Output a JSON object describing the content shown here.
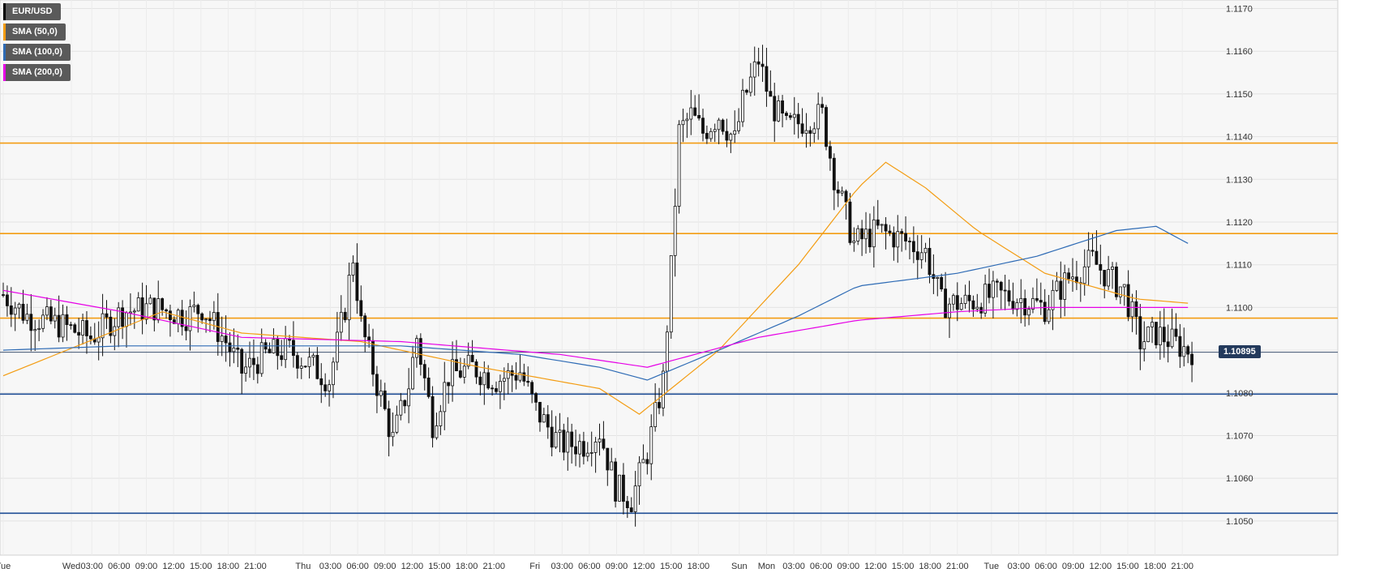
{
  "chart_data": {
    "type": "candlestick",
    "symbol": "EUR/USD",
    "last_price": "1.10895",
    "ylim": [
      1.1042,
      1.1172
    ],
    "y_ticks": [
      "1.1050",
      "1.1060",
      "1.1070",
      "1.1080",
      "1.1090",
      "1.1100",
      "1.1110",
      "1.1120",
      "1.1130",
      "1.1140",
      "1.1150",
      "1.1160",
      "1.1170"
    ],
    "x_ticks": [
      "Tue",
      "Wed",
      "03:00",
      "06:00",
      "09:00",
      "12:00",
      "15:00",
      "18:00",
      "21:00",
      "Thu",
      "03:00",
      "06:00",
      "09:00",
      "12:00",
      "15:00",
      "18:00",
      "21:00",
      "Fri",
      "03:00",
      "06:00",
      "09:00",
      "12:00",
      "15:00",
      "18:00",
      "Sun",
      "Mon",
      "03:00",
      "06:00",
      "09:00",
      "12:00",
      "15:00",
      "18:00",
      "21:00",
      "Tue",
      "03:00",
      "06:00",
      "09:00",
      "12:00",
      "15:00",
      "18:00",
      "21:00"
    ],
    "grid": true,
    "legend": [
      {
        "label": "EUR/USD",
        "color": "#000000"
      },
      {
        "label": "SMA (50,0)",
        "color": "#f39c12"
      },
      {
        "label": "SMA (100,0)",
        "color": "#2e6bb5"
      },
      {
        "label": "SMA (200,0)",
        "color": "#e600e6"
      }
    ],
    "horizontal_levels": [
      {
        "value": 1.11385,
        "color": "#f39c12"
      },
      {
        "value": 1.11173,
        "color": "#f39c12"
      },
      {
        "value": 1.10975,
        "color": "#f39c12"
      },
      {
        "value": 1.10797,
        "color": "#1f4e96"
      },
      {
        "value": 1.10518,
        "color": "#1f4e96"
      }
    ],
    "price_anchors": [
      [
        0,
        1.1103
      ],
      [
        6,
        1.1098
      ],
      [
        14,
        1.1096
      ],
      [
        22,
        1.1093
      ],
      [
        30,
        1.1099
      ],
      [
        38,
        1.11
      ],
      [
        46,
        1.1098
      ],
      [
        50,
        1.11
      ],
      [
        56,
        1.1092
      ],
      [
        60,
        1.1085
      ],
      [
        66,
        1.1089
      ],
      [
        72,
        1.109
      ],
      [
        78,
        1.1086
      ],
      [
        82,
        1.1083
      ],
      [
        86,
        1.11
      ],
      [
        88,
        1.1112
      ],
      [
        90,
        1.1096
      ],
      [
        94,
        1.1082
      ],
      [
        98,
        1.1069
      ],
      [
        102,
        1.1082
      ],
      [
        104,
        1.1093
      ],
      [
        108,
        1.1073
      ],
      [
        112,
        1.1084
      ],
      [
        118,
        1.1086
      ],
      [
        124,
        1.1083
      ],
      [
        130,
        1.1085
      ],
      [
        134,
        1.1076
      ],
      [
        140,
        1.1068
      ],
      [
        146,
        1.1068
      ],
      [
        150,
        1.1071
      ],
      [
        154,
        1.1058
      ],
      [
        158,
        1.1055
      ],
      [
        162,
        1.1066
      ],
      [
        166,
        1.1083
      ],
      [
        168,
        1.1109
      ],
      [
        170,
        1.1141
      ],
      [
        173,
        1.1145
      ],
      [
        176,
        1.1141
      ],
      [
        180,
        1.1145
      ],
      [
        184,
        1.1139
      ],
      [
        186,
        1.1148
      ],
      [
        190,
        1.1158
      ],
      [
        193,
        1.1148
      ],
      [
        197,
        1.1142
      ],
      [
        202,
        1.1144
      ],
      [
        206,
        1.1145
      ],
      [
        209,
        1.1131
      ],
      [
        214,
        1.1115
      ],
      [
        220,
        1.1118
      ],
      [
        226,
        1.1116
      ],
      [
        232,
        1.1113
      ],
      [
        236,
        1.1101
      ],
      [
        242,
        1.1101
      ],
      [
        250,
        1.1103
      ],
      [
        256,
        1.1102
      ],
      [
        262,
        1.11
      ],
      [
        268,
        1.1107
      ],
      [
        274,
        1.1111
      ],
      [
        278,
        1.1107
      ],
      [
        282,
        1.1104
      ],
      [
        286,
        1.1092
      ],
      [
        290,
        1.1094
      ],
      [
        294,
        1.1092
      ],
      [
        298,
        1.109
      ]
    ],
    "sma50_points": [
      [
        0,
        1.1084
      ],
      [
        40,
        1.1099
      ],
      [
        60,
        1.1094
      ],
      [
        90,
        1.1092
      ],
      [
        120,
        1.1086
      ],
      [
        150,
        1.1081
      ],
      [
        160,
        1.1075
      ],
      [
        180,
        1.109
      ],
      [
        200,
        1.111
      ],
      [
        215,
        1.1128
      ],
      [
        222,
        1.1134
      ],
      [
        232,
        1.1128
      ],
      [
        245,
        1.1118
      ],
      [
        262,
        1.1108
      ],
      [
        285,
        1.1102
      ],
      [
        298,
        1.1101
      ]
    ],
    "sma100_points": [
      [
        0,
        1.109
      ],
      [
        30,
        1.1091
      ],
      [
        70,
        1.1091
      ],
      [
        100,
        1.1091
      ],
      [
        130,
        1.1089
      ],
      [
        150,
        1.1086
      ],
      [
        162,
        1.1083
      ],
      [
        180,
        1.109
      ],
      [
        200,
        1.1098
      ],
      [
        215,
        1.1105
      ],
      [
        240,
        1.1108
      ],
      [
        260,
        1.1112
      ],
      [
        280,
        1.1118
      ],
      [
        290,
        1.1119
      ],
      [
        298,
        1.1115
      ]
    ],
    "sma200_points": [
      [
        0,
        1.1104
      ],
      [
        30,
        1.1099
      ],
      [
        60,
        1.1093
      ],
      [
        100,
        1.1092
      ],
      [
        140,
        1.1089
      ],
      [
        162,
        1.1086
      ],
      [
        190,
        1.1093
      ],
      [
        215,
        1.1097
      ],
      [
        240,
        1.1099
      ],
      [
        262,
        1.11
      ],
      [
        282,
        1.11
      ],
      [
        298,
        1.11
      ]
    ]
  }
}
